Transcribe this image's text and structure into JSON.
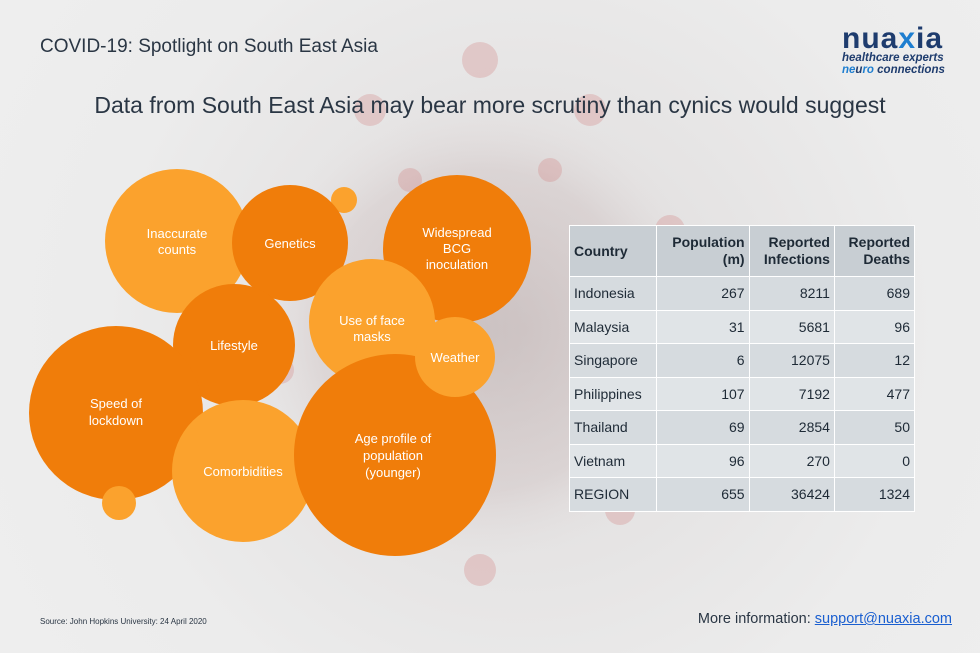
{
  "header": {
    "title": "COVID-19: Spotlight on South East Asia"
  },
  "logo": {
    "word_pre": "nua",
    "word_accent": "x",
    "word_post": "ia",
    "line1": "healthcare experts",
    "line2_accent": "ne",
    "line2_mid": "u",
    "line2_accent2": "ro",
    "line2_post": " connections"
  },
  "subtitle": "Data from South East Asia may bear more scrutiny than cynics would suggest",
  "bubbles": [
    {
      "lines": [
        "Inaccurate",
        "counts"
      ]
    },
    {
      "lines": [
        "Genetics"
      ]
    },
    {
      "lines": [
        "Widespread",
        "BCG",
        "inoculation"
      ]
    },
    {
      "lines": [
        "Use of face",
        "masks"
      ]
    },
    {
      "lines": [
        "Lifestyle"
      ]
    },
    {
      "lines": [
        "Weather"
      ]
    },
    {
      "lines": [
        "Speed of",
        "lockdown"
      ]
    },
    {
      "lines": [
        "Comorbidities"
      ]
    },
    {
      "lines": [
        "Age profile of",
        "population",
        "(younger)"
      ]
    }
  ],
  "colors": {
    "light_orange": "#fba22d",
    "dark_orange": "#f07d0a",
    "mid_orange": "#f68e15"
  },
  "table": {
    "headers": [
      [
        "Country"
      ],
      [
        "Population",
        "(m)"
      ],
      [
        "Reported",
        "Infections"
      ],
      [
        "Reported",
        "Deaths"
      ]
    ],
    "rows": [
      [
        "Indonesia",
        "267",
        "8211",
        "689"
      ],
      [
        "Malaysia",
        "31",
        "5681",
        "96"
      ],
      [
        "Singapore",
        "6",
        "12075",
        "12"
      ],
      [
        "Philippines",
        "107",
        "7192",
        "477"
      ],
      [
        "Thailand",
        "69",
        "2854",
        "50"
      ],
      [
        "Vietnam",
        "96",
        "270",
        "0"
      ],
      [
        "REGION",
        "655",
        "36424",
        "1324"
      ]
    ]
  },
  "footer": {
    "source": "Source: John Hopkins University: 24 April 2020",
    "more_info_label": "More information: ",
    "email": "support@nuaxia.com"
  }
}
